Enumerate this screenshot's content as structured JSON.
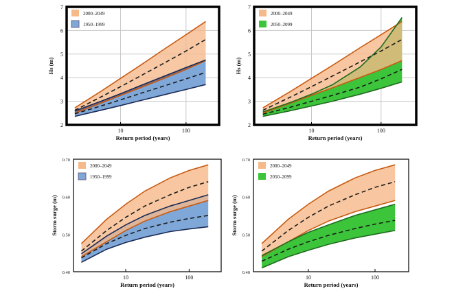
{
  "colors": {
    "orange_fill": "#f6b98a",
    "orange_line": "#c85a10",
    "blue_fill": "#7fa7d8",
    "green_fill": "#3cc43a",
    "green_line": "#1f6b1f",
    "overlap_fill": "#6b5f7a",
    "overlap_fill_green": "#5a8a4a",
    "dash": "#1a1a1a",
    "frame": "#000000",
    "grid": "#c8c8c8"
  },
  "chart_data": [
    {
      "type": "area",
      "xscale": "log",
      "xlim": [
        1.5,
        320
      ],
      "ylim": [
        2,
        7
      ],
      "xticks": [
        10,
        100
      ],
      "xtick_labels": [
        "10",
        "100"
      ],
      "yticks": [
        2,
        3,
        4,
        5,
        6,
        7
      ],
      "ytick_labels": [
        "2",
        "3",
        "4",
        "5",
        "6",
        "7"
      ],
      "xlabel": "Return period (years)",
      "ylabel": "Hs (m)",
      "grid": true,
      "legend_position": "top-left",
      "x": [
        2,
        5,
        10,
        20,
        50,
        100,
        200
      ],
      "series": [
        {
          "name": "2000–2049",
          "color": "orange",
          "central": [
            2.62,
            3.18,
            3.62,
            4.07,
            4.67,
            5.13,
            5.62
          ],
          "lower": [
            2.5,
            2.92,
            3.25,
            3.57,
            4.01,
            4.35,
            4.72
          ],
          "upper": [
            2.72,
            3.42,
            3.97,
            4.52,
            5.27,
            5.82,
            6.38
          ]
        },
        {
          "name": "1950–1999",
          "color": "blue",
          "central": [
            2.47,
            2.8,
            3.06,
            3.33,
            3.68,
            3.95,
            4.22
          ],
          "lower": [
            2.36,
            2.62,
            2.82,
            3.03,
            3.3,
            3.5,
            3.71
          ],
          "upper": [
            2.59,
            3.0,
            3.32,
            3.66,
            4.1,
            4.43,
            4.75
          ]
        }
      ]
    },
    {
      "type": "area",
      "xscale": "log",
      "xlim": [
        1.5,
        320
      ],
      "ylim": [
        2,
        7
      ],
      "xticks": [
        10,
        100
      ],
      "xtick_labels": [
        "10",
        "100"
      ],
      "yticks": [
        2,
        3,
        4,
        5,
        6,
        7
      ],
      "ytick_labels": [
        "2",
        "3",
        "4",
        "5",
        "6",
        "7"
      ],
      "xlabel": "Return period (years)",
      "ylabel": "Hs (m)",
      "grid": true,
      "legend_position": "top-left",
      "x": [
        2,
        5,
        10,
        20,
        50,
        100,
        200
      ],
      "series": [
        {
          "name": "2000–2049",
          "color": "orange",
          "central": [
            2.62,
            3.18,
            3.62,
            4.07,
            4.67,
            5.13,
            5.62
          ],
          "lower": [
            2.5,
            2.92,
            3.25,
            3.57,
            4.01,
            4.35,
            4.72
          ],
          "upper": [
            2.72,
            3.42,
            3.97,
            4.52,
            5.27,
            5.82,
            6.38
          ]
        },
        {
          "name": "2050–2099",
          "color": "green",
          "central": [
            2.45,
            2.75,
            3.0,
            3.25,
            3.6,
            3.95,
            4.35
          ],
          "lower": [
            2.36,
            2.6,
            2.8,
            3.0,
            3.3,
            3.55,
            3.82
          ],
          "upper": [
            2.55,
            2.95,
            3.3,
            3.7,
            4.45,
            5.3,
            6.55
          ]
        }
      ]
    },
    {
      "type": "area",
      "xscale": "log",
      "xlim": [
        1.5,
        320
      ],
      "ylim": [
        0.4,
        0.7
      ],
      "xticks": [
        10,
        100
      ],
      "xtick_labels": [
        "10",
        "100"
      ],
      "yticks": [
        0.4,
        0.5,
        0.6,
        0.7
      ],
      "ytick_labels": [
        "0.40",
        "0.50",
        "0.60",
        "0.70"
      ],
      "xlabel": "Return period (years)",
      "ylabel": "Storm surge (m)",
      "grid": false,
      "legend_position": "top-left",
      "x": [
        2,
        5,
        10,
        20,
        50,
        100,
        200
      ],
      "series": [
        {
          "name": "2000–2049",
          "color": "orange",
          "central": [
            0.455,
            0.51,
            0.545,
            0.575,
            0.605,
            0.625,
            0.64
          ],
          "lower": [
            0.44,
            0.48,
            0.51,
            0.535,
            0.56,
            0.575,
            0.59
          ],
          "upper": [
            0.475,
            0.54,
            0.58,
            0.615,
            0.65,
            0.67,
            0.685
          ]
        },
        {
          "name": "1950–1999",
          "color": "blue",
          "central": [
            0.437,
            0.475,
            0.497,
            0.515,
            0.532,
            0.542,
            0.55
          ],
          "lower": [
            0.425,
            0.46,
            0.478,
            0.492,
            0.507,
            0.514,
            0.52
          ],
          "upper": [
            0.448,
            0.495,
            0.525,
            0.55,
            0.575,
            0.59,
            0.605
          ]
        }
      ]
    },
    {
      "type": "area",
      "xscale": "log",
      "xlim": [
        1.5,
        320
      ],
      "ylim": [
        0.4,
        0.7
      ],
      "xticks": [
        10,
        100
      ],
      "xtick_labels": [
        "10",
        "100"
      ],
      "yticks": [
        0.4,
        0.5,
        0.6,
        0.7
      ],
      "ytick_labels": [
        "0.40",
        "0.50",
        "0.60",
        "0.70"
      ],
      "xlabel": "Return period (years)",
      "ylabel": "Storm surge (m)",
      "grid": false,
      "legend_position": "top-left",
      "x": [
        2,
        5,
        10,
        20,
        50,
        100,
        200
      ],
      "series": [
        {
          "name": "2000–2049",
          "color": "orange",
          "central": [
            0.455,
            0.51,
            0.545,
            0.575,
            0.605,
            0.625,
            0.64
          ],
          "lower": [
            0.44,
            0.48,
            0.51,
            0.535,
            0.56,
            0.575,
            0.59
          ],
          "upper": [
            0.475,
            0.54,
            0.58,
            0.615,
            0.65,
            0.67,
            0.685
          ]
        },
        {
          "name": "2050–2099",
          "color": "green",
          "central": [
            0.428,
            0.46,
            0.48,
            0.497,
            0.515,
            0.527,
            0.537
          ],
          "lower": [
            0.41,
            0.44,
            0.457,
            0.473,
            0.49,
            0.5,
            0.51
          ],
          "upper": [
            0.443,
            0.48,
            0.505,
            0.525,
            0.55,
            0.565,
            0.58
          ]
        }
      ]
    }
  ]
}
